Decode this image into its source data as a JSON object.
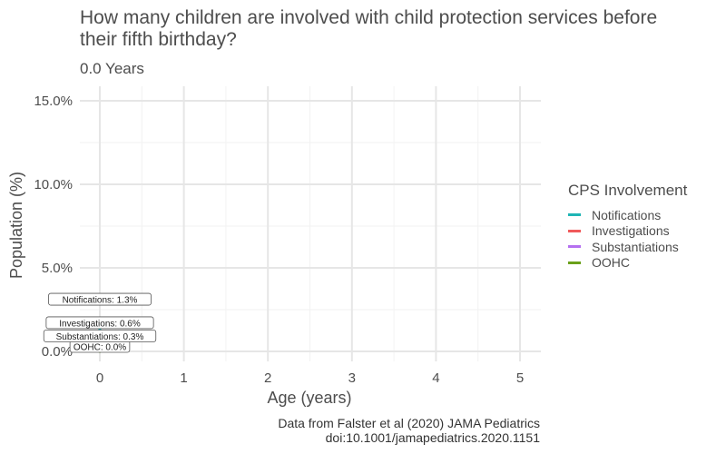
{
  "chart_data": {
    "type": "line",
    "title": "How many children are involved with child protection services before their fifth birthday?",
    "subtitle": "0.0 Years",
    "xlabel": "Age (years)",
    "ylabel": "Population (%)",
    "xlim": [
      0,
      5
    ],
    "ylim": [
      0,
      15
    ],
    "x_ticks": [
      "0",
      "1",
      "2",
      "3",
      "4",
      "5"
    ],
    "y_ticks": [
      "0.0%",
      "5.0%",
      "10.0%",
      "15.0%"
    ],
    "legend_title": "CPS Involvement",
    "legend_position": "right",
    "grid": true,
    "series": [
      {
        "name": "Notifications",
        "color": "#1fb5b5",
        "x": [
          0
        ],
        "y": [
          1.3
        ],
        "label": "Notifications:  1.3%"
      },
      {
        "name": "Investigations",
        "color": "#f0595a",
        "x": [
          0
        ],
        "y": [
          0.6
        ],
        "label": "Investigations:  0.6%"
      },
      {
        "name": "Substantiations",
        "color": "#b570f0",
        "x": [
          0
        ],
        "y": [
          0.3
        ],
        "label": "Substantiations:  0.3%"
      },
      {
        "name": "OOHC",
        "color": "#6aa01a",
        "x": [
          0
        ],
        "y": [
          0.0
        ],
        "label": "OOHC:  0.0%"
      }
    ],
    "caption": [
      "Data from Falster et al (2020) JAMA Pediatrics",
      "doi:10.1001/jamapediatrics.2020.1151"
    ]
  }
}
